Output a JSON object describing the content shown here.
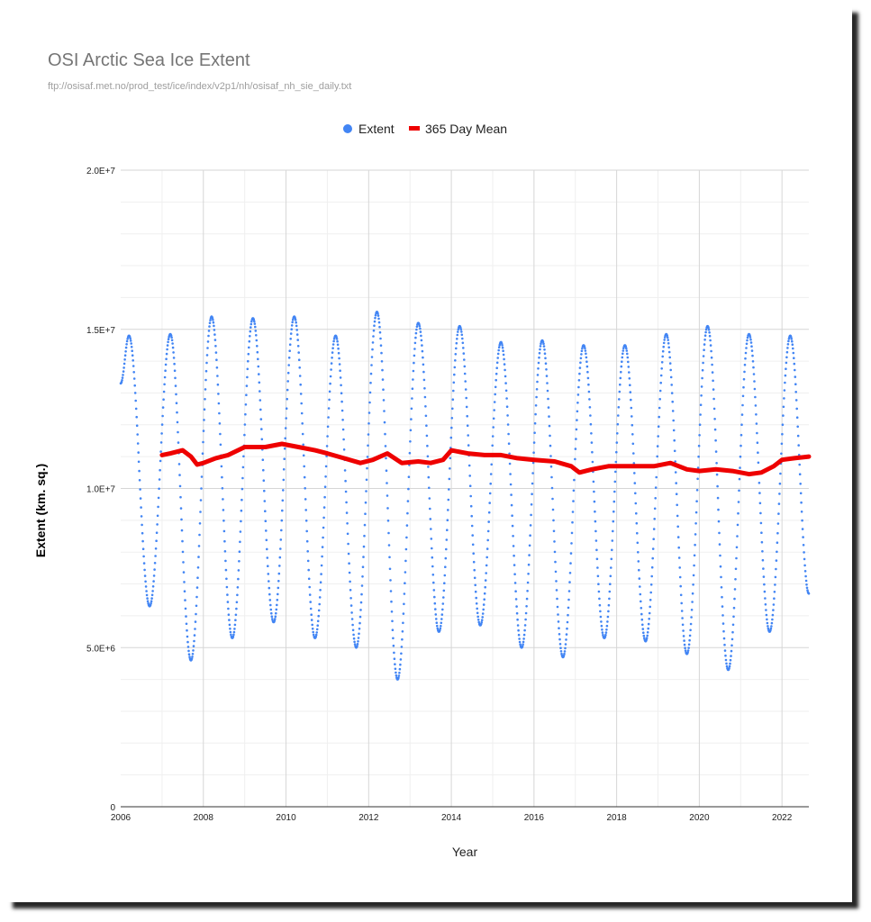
{
  "chart_data": {
    "type": "scatter",
    "title": "OSI Arctic Sea Ice Extent",
    "subtitle": "ftp://osisaf.met.no/prod_test/ice/index/v2p1/nh/osisaf_nh_sie_daily.txt",
    "xlabel": "Year",
    "ylabel": "Extent (km. sq.)",
    "xlim": [
      2006,
      2022.65
    ],
    "ylim": [
      0,
      20000000
    ],
    "x_ticks": [
      2006,
      2008,
      2010,
      2012,
      2014,
      2016,
      2018,
      2020,
      2022
    ],
    "x_tick_labels": [
      "2006",
      "2008",
      "2010",
      "2012",
      "2014",
      "2016",
      "2018",
      "2020",
      "2022"
    ],
    "y_ticks": [
      0,
      5000000,
      10000000,
      15000000,
      20000000
    ],
    "y_tick_labels": [
      "0",
      "5.0E+6",
      "1.0E+7",
      "1.5E+7",
      "2.0E+7"
    ],
    "grid": true,
    "legend_position": "top",
    "series": [
      {
        "name": "Extent",
        "style": "points",
        "color": "#4285f4",
        "annual_max": [
          [
            2006.2,
            14800000
          ],
          [
            2007.2,
            14850000
          ],
          [
            2008.2,
            15400000
          ],
          [
            2009.2,
            15350000
          ],
          [
            2010.2,
            15400000
          ],
          [
            2011.2,
            14800000
          ],
          [
            2012.2,
            15550000
          ],
          [
            2013.2,
            15200000
          ],
          [
            2014.2,
            15100000
          ],
          [
            2015.2,
            14600000
          ],
          [
            2016.2,
            14650000
          ],
          [
            2017.2,
            14500000
          ],
          [
            2018.2,
            14500000
          ],
          [
            2019.2,
            14850000
          ],
          [
            2020.2,
            15100000
          ],
          [
            2021.2,
            14850000
          ],
          [
            2022.2,
            14800000
          ]
        ],
        "annual_min": [
          [
            2006.7,
            6300000
          ],
          [
            2007.7,
            4600000
          ],
          [
            2008.7,
            5300000
          ],
          [
            2009.7,
            5800000
          ],
          [
            2010.7,
            5300000
          ],
          [
            2011.7,
            5000000
          ],
          [
            2012.7,
            4000000
          ],
          [
            2013.7,
            5500000
          ],
          [
            2014.7,
            5700000
          ],
          [
            2015.7,
            5000000
          ],
          [
            2016.7,
            4700000
          ],
          [
            2017.7,
            5300000
          ],
          [
            2018.7,
            5200000
          ],
          [
            2019.7,
            4800000
          ],
          [
            2020.7,
            4300000
          ],
          [
            2021.7,
            5500000
          ]
        ]
      },
      {
        "name": "365 Day Mean",
        "style": "line",
        "color": "#ee0000",
        "x": [
          2007.0,
          2007.2,
          2007.5,
          2007.7,
          2007.85,
          2008.0,
          2008.3,
          2008.6,
          2009.0,
          2009.5,
          2009.9,
          2010.3,
          2010.7,
          2011.0,
          2011.4,
          2011.8,
          2012.1,
          2012.45,
          2012.8,
          2013.2,
          2013.5,
          2013.8,
          2014.0,
          2014.4,
          2014.8,
          2015.2,
          2015.6,
          2016.0,
          2016.5,
          2016.9,
          2017.1,
          2017.4,
          2017.8,
          2018.1,
          2018.5,
          2018.9,
          2019.3,
          2019.7,
          2020.0,
          2020.4,
          2020.8,
          2021.2,
          2021.5,
          2021.8,
          2022.0,
          2022.3,
          2022.65
        ],
        "values": [
          11050000,
          11100000,
          11200000,
          11000000,
          10750000,
          10800000,
          10950000,
          11050000,
          11300000,
          11300000,
          11400000,
          11300000,
          11200000,
          11100000,
          10950000,
          10800000,
          10900000,
          11100000,
          10800000,
          10850000,
          10800000,
          10900000,
          11200000,
          11100000,
          11050000,
          11050000,
          10950000,
          10900000,
          10850000,
          10700000,
          10500000,
          10600000,
          10700000,
          10700000,
          10700000,
          10700000,
          10800000,
          10600000,
          10550000,
          10600000,
          10550000,
          10450000,
          10500000,
          10700000,
          10900000,
          10950000,
          11000000
        ]
      }
    ]
  }
}
